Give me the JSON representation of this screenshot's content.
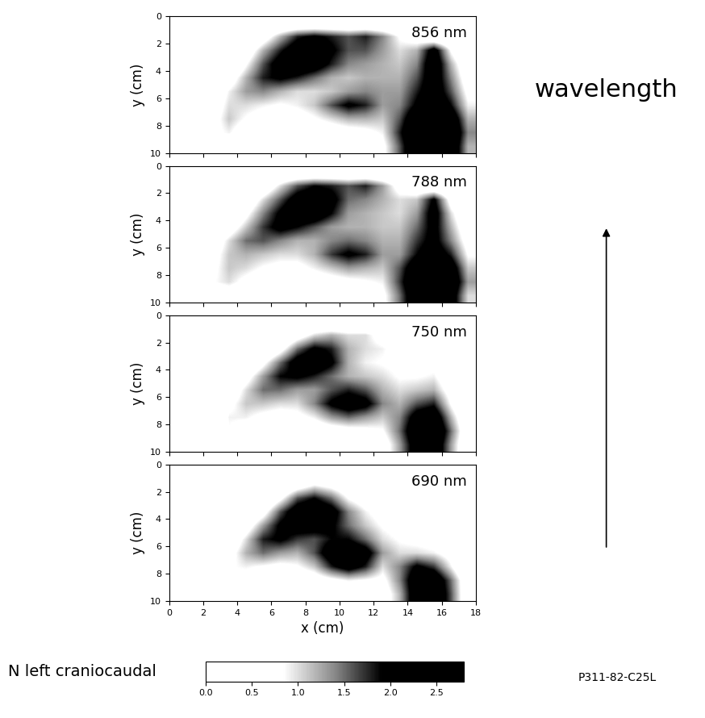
{
  "chart_data": [
    {
      "type": "heatmap",
      "annotation": "856 nm",
      "ylabel": "y (cm)",
      "tick_labels": "y",
      "xlim": [
        0,
        18
      ],
      "ylim": [
        10,
        0
      ],
      "xticks": [
        0,
        2,
        4,
        6,
        8,
        10,
        12,
        14,
        16,
        18
      ],
      "yticks": [
        0,
        2,
        4,
        6,
        8,
        10
      ],
      "cells": [
        [
          0,
          0,
          0,
          0,
          0,
          0,
          0,
          0,
          0,
          0,
          0,
          0,
          0,
          0,
          0,
          0,
          0,
          0
        ],
        [
          0,
          0,
          0,
          0,
          0,
          0.5,
          1.2,
          1.8,
          2.0,
          1.8,
          1.6,
          1.8,
          1.4,
          0.8,
          0.5,
          0,
          0,
          0
        ],
        [
          0,
          0,
          0,
          0,
          0.4,
          1.2,
          1.8,
          2.3,
          2.4,
          2.0,
          1.6,
          1.6,
          1.3,
          1.0,
          1.2,
          2.2,
          0.8,
          0
        ],
        [
          0,
          0,
          0,
          0,
          0.8,
          1.6,
          2.2,
          2.5,
          2.3,
          1.8,
          1.4,
          1.3,
          1.2,
          1.1,
          1.4,
          2.4,
          1.2,
          0.3
        ],
        [
          0,
          0,
          0,
          0.5,
          1.2,
          1.8,
          2.0,
          1.8,
          1.5,
          1.2,
          1.1,
          1.2,
          1.2,
          1.2,
          1.6,
          2.3,
          1.4,
          0.5
        ],
        [
          0,
          0,
          0.3,
          0.9,
          1.3,
          1.4,
          1.2,
          1.0,
          1.0,
          1.1,
          1.3,
          1.4,
          1.3,
          1.3,
          1.8,
          2.3,
          1.6,
          0.7
        ],
        [
          0,
          0,
          0.5,
          1.0,
          1.0,
          0.9,
          0.8,
          0.9,
          1.1,
          1.6,
          2.0,
          1.8,
          1.3,
          1.4,
          2.0,
          2.4,
          1.9,
          0.9
        ],
        [
          0,
          0,
          0.6,
          1.1,
          0.8,
          0.6,
          0.5,
          0.6,
          0.8,
          1.0,
          1.2,
          1.2,
          1.1,
          1.6,
          2.5,
          2.7,
          2.4,
          1.2
        ],
        [
          0,
          0,
          0.7,
          0.9,
          0.5,
          0.3,
          0.3,
          0.3,
          0.4,
          0.5,
          0.6,
          0.7,
          0.9,
          1.8,
          2.7,
          2.8,
          2.6,
          1.4
        ],
        [
          0,
          0,
          0.3,
          0.4,
          0.2,
          0.1,
          0.1,
          0.1,
          0.1,
          0.1,
          0.2,
          0.3,
          0.7,
          1.6,
          2.6,
          2.8,
          2.5,
          1.2
        ]
      ]
    },
    {
      "type": "heatmap",
      "annotation": "788 nm",
      "ylabel": "y (cm)",
      "tick_labels": "y",
      "xlim": [
        0,
        18
      ],
      "ylim": [
        10,
        0
      ],
      "xticks": [
        0,
        2,
        4,
        6,
        8,
        10,
        12,
        14,
        16,
        18
      ],
      "yticks": [
        0,
        2,
        4,
        6,
        8,
        10
      ],
      "cells": [
        [
          0,
          0,
          0,
          0,
          0,
          0,
          0,
          0,
          0,
          0,
          0,
          0,
          0,
          0,
          0,
          0,
          0,
          0
        ],
        [
          0,
          0,
          0,
          0,
          0,
          0.3,
          1.0,
          1.6,
          1.9,
          1.8,
          1.6,
          1.8,
          1.3,
          0.6,
          0.3,
          0,
          0,
          0
        ],
        [
          0,
          0,
          0,
          0,
          0.3,
          1.0,
          1.6,
          2.2,
          2.4,
          2.1,
          1.5,
          1.4,
          1.2,
          1.0,
          1.1,
          2.0,
          0.6,
          0
        ],
        [
          0,
          0,
          0,
          0,
          0.7,
          1.4,
          2.0,
          2.5,
          2.4,
          1.9,
          1.3,
          1.2,
          1.1,
          1.0,
          1.3,
          2.2,
          1.0,
          0.2
        ],
        [
          0,
          0,
          0,
          0.5,
          1.1,
          1.7,
          2.1,
          1.9,
          1.6,
          1.3,
          1.2,
          1.2,
          1.1,
          1.1,
          1.5,
          2.1,
          1.2,
          0.4
        ],
        [
          0,
          0,
          0.4,
          1.0,
          1.5,
          1.6,
          1.4,
          1.2,
          1.2,
          1.4,
          1.5,
          1.4,
          1.2,
          1.2,
          1.7,
          2.1,
          1.4,
          0.6
        ],
        [
          0,
          0,
          0.6,
          1.1,
          1.2,
          1.1,
          1.0,
          1.0,
          1.2,
          1.7,
          2.0,
          1.8,
          1.3,
          1.3,
          1.9,
          2.3,
          1.8,
          0.8
        ],
        [
          0,
          0,
          0.7,
          1.1,
          1.0,
          0.8,
          0.7,
          0.7,
          0.9,
          1.1,
          1.3,
          1.2,
          1.1,
          1.6,
          2.4,
          2.7,
          2.3,
          1.1
        ],
        [
          0,
          0,
          0.8,
          1.0,
          0.7,
          0.5,
          0.4,
          0.4,
          0.5,
          0.6,
          0.7,
          0.8,
          0.9,
          1.7,
          2.6,
          2.8,
          2.5,
          1.3
        ],
        [
          0,
          0,
          0.4,
          0.5,
          0.3,
          0.2,
          0.2,
          0.2,
          0.2,
          0.2,
          0.3,
          0.4,
          0.7,
          1.5,
          2.5,
          2.7,
          2.3,
          1.0
        ]
      ]
    },
    {
      "type": "heatmap",
      "annotation": "750 nm",
      "ylabel": "y (cm)",
      "tick_labels": "y",
      "xlim": [
        0,
        18
      ],
      "ylim": [
        10,
        0
      ],
      "xticks": [
        0,
        2,
        4,
        6,
        8,
        10,
        12,
        14,
        16,
        18
      ],
      "yticks": [
        0,
        2,
        4,
        6,
        8,
        10
      ],
      "cells": [
        [
          0,
          0,
          0,
          0,
          0,
          0,
          0,
          0,
          0,
          0,
          0,
          0,
          0,
          0,
          0,
          0,
          0,
          0
        ],
        [
          0,
          0,
          0,
          0,
          0,
          0,
          0,
          0.5,
          1.0,
          1.2,
          1.0,
          1.0,
          0.6,
          0.2,
          0,
          0,
          0,
          0
        ],
        [
          0,
          0,
          0,
          0,
          0,
          0,
          0.6,
          1.5,
          2.0,
          1.8,
          1.2,
          1.0,
          0.9,
          0.6,
          0.4,
          0.3,
          0,
          0
        ],
        [
          0,
          0,
          0,
          0,
          0,
          0.7,
          1.5,
          2.2,
          2.4,
          2.0,
          1.2,
          0.9,
          0.8,
          0.7,
          0.6,
          0.7,
          0.3,
          0
        ],
        [
          0,
          0,
          0,
          0,
          0.6,
          1.3,
          1.9,
          2.0,
          1.8,
          1.5,
          1.2,
          1.1,
          1.0,
          0.8,
          0.8,
          0.9,
          0.4,
          0
        ],
        [
          0,
          0,
          0,
          0.4,
          1.0,
          1.5,
          1.5,
          1.3,
          1.3,
          1.6,
          1.8,
          1.6,
          1.2,
          1.0,
          1.1,
          1.2,
          0.6,
          0
        ],
        [
          0,
          0,
          0,
          0.7,
          1.1,
          1.1,
          1.0,
          1.0,
          1.4,
          2.0,
          2.3,
          2.1,
          1.4,
          1.2,
          1.6,
          1.8,
          0.8,
          0
        ],
        [
          0,
          0,
          0,
          0.9,
          0.9,
          0.7,
          0.6,
          0.7,
          0.9,
          1.3,
          1.5,
          1.3,
          1.1,
          1.4,
          2.2,
          2.4,
          1.2,
          0.2
        ],
        [
          0,
          0,
          0,
          0.8,
          0.5,
          0.3,
          0.3,
          0.3,
          0.4,
          0.5,
          0.6,
          0.7,
          0.8,
          1.5,
          2.5,
          2.7,
          1.5,
          0.3
        ],
        [
          0,
          0,
          0,
          0.3,
          0.2,
          0.1,
          0.1,
          0.1,
          0.1,
          0.1,
          0.2,
          0.3,
          0.5,
          1.3,
          2.3,
          2.5,
          1.3,
          0.2
        ]
      ]
    },
    {
      "type": "heatmap",
      "annotation": "690 nm",
      "ylabel": "y (cm)",
      "xlabel": "x (cm)",
      "xlim": [
        0,
        18
      ],
      "ylim": [
        10,
        0
      ],
      "xticks": [
        0,
        2,
        4,
        6,
        8,
        10,
        12,
        14,
        16,
        18
      ],
      "yticks": [
        0,
        2,
        4,
        6,
        8,
        10
      ],
      "cells": [
        [
          0,
          0,
          0,
          0,
          0,
          0,
          0,
          0,
          0,
          0,
          0,
          0,
          0,
          0,
          0,
          0,
          0,
          0
        ],
        [
          0,
          0,
          0,
          0,
          0,
          0,
          0,
          0.4,
          0.8,
          0.6,
          0.3,
          0,
          0,
          0,
          0,
          0,
          0,
          0
        ],
        [
          0,
          0,
          0,
          0,
          0,
          0,
          0.7,
          1.6,
          1.9,
          1.5,
          0.8,
          0.5,
          0.4,
          0.3,
          0.2,
          0,
          0,
          0
        ],
        [
          0,
          0,
          0,
          0,
          0,
          0.6,
          1.6,
          2.3,
          2.5,
          2.2,
          1.4,
          0.9,
          0.6,
          0.5,
          0.4,
          0.3,
          0,
          0
        ],
        [
          0,
          0,
          0,
          0,
          0.5,
          1.3,
          2.0,
          2.2,
          2.2,
          2.0,
          1.5,
          1.1,
          0.8,
          0.6,
          0.5,
          0.4,
          0.2,
          0
        ],
        [
          0,
          0,
          0,
          0.3,
          1.0,
          1.8,
          2.0,
          1.7,
          1.6,
          1.9,
          1.9,
          1.5,
          1.0,
          0.8,
          0.7,
          0.6,
          0.4,
          0
        ],
        [
          0,
          0,
          0,
          0.6,
          1.2,
          1.5,
          1.3,
          1.2,
          1.6,
          2.3,
          2.5,
          2.2,
          1.3,
          1.0,
          1.0,
          0.9,
          0.6,
          0
        ],
        [
          0,
          0,
          0,
          0.8,
          0.9,
          0.8,
          0.7,
          0.8,
          1.1,
          1.8,
          2.2,
          1.8,
          1.0,
          1.4,
          2.0,
          1.7,
          0.9,
          0
        ],
        [
          0,
          0,
          0,
          0.8,
          0.6,
          0.4,
          0.4,
          0.4,
          0.5,
          0.7,
          0.9,
          0.8,
          0.7,
          1.4,
          2.4,
          2.5,
          1.5,
          0.3
        ],
        [
          0,
          0,
          0,
          0.4,
          0.3,
          0.2,
          0.2,
          0.2,
          0.2,
          0.3,
          0.3,
          0.3,
          0.5,
          1.2,
          2.4,
          2.6,
          1.6,
          0.3
        ]
      ]
    }
  ],
  "colorbar": {
    "label": "N left craniocaudal",
    "range": [
      0,
      2.8
    ],
    "ticks": [
      {
        "value": 0,
        "label": "0.0"
      },
      {
        "value": 0.5,
        "label": "0.5"
      },
      {
        "value": 1,
        "label": "1.0"
      },
      {
        "value": 1.5,
        "label": "1.5"
      },
      {
        "value": 2,
        "label": "2.0"
      },
      {
        "value": 2.5,
        "label": "2.5"
      }
    ]
  },
  "texts": {
    "arrow_label": "wavelength",
    "code": "P311-82-C25L"
  }
}
